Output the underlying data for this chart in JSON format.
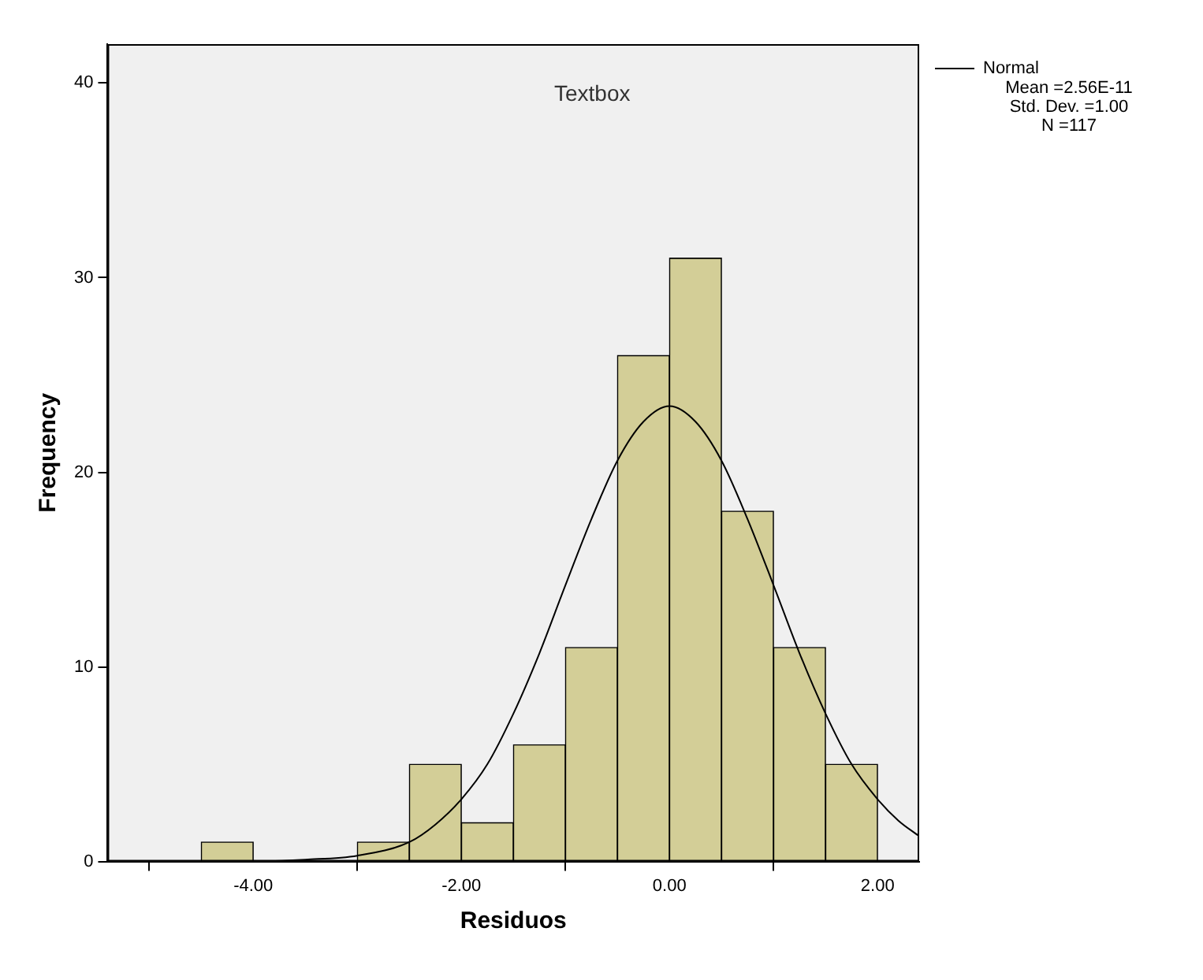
{
  "chart_data": {
    "type": "histogram",
    "xlabel": "Residuos",
    "ylabel": "Frequency",
    "bins": [
      -4.5,
      -4.0,
      -3.5,
      -3.0,
      -2.5,
      -2.0,
      -1.5,
      -1.0,
      -0.5,
      0.0,
      0.5,
      1.0,
      1.5,
      2.0
    ],
    "values": [
      1,
      0,
      0,
      1,
      5,
      2,
      6,
      11,
      26,
      31,
      18,
      11,
      5
    ],
    "color": "#d3ce97",
    "series": [
      {
        "name": "Normal",
        "type": "line",
        "color": "#000000",
        "x": [
          -5.4,
          -4,
          -3.5,
          -3,
          -2.5,
          -2.25,
          -2,
          -1.75,
          -1.5,
          -1.25,
          -1,
          -0.75,
          -0.5,
          -0.25,
          0,
          0.25,
          0.5,
          0.75,
          1,
          1.25,
          1.5,
          1.75,
          2,
          2.2,
          2.4
        ],
        "values": [
          0,
          0,
          0.1,
          0.3,
          1.0,
          1.9,
          3.2,
          5.0,
          7.6,
          10.7,
          14.2,
          17.6,
          20.6,
          22.6,
          23.4,
          22.6,
          20.6,
          17.6,
          14.2,
          10.7,
          7.6,
          5.0,
          3.2,
          2.1,
          1.3
        ]
      }
    ],
    "xlim": [
      -5.4,
      2.4
    ],
    "xticks": [
      {
        "value": -4,
        "label": "-4.00"
      },
      {
        "value": -2,
        "label": "-2.00"
      },
      {
        "value": 0,
        "label": "0.00"
      },
      {
        "value": 2,
        "label": "2.00"
      }
    ],
    "ylim": [
      0,
      42
    ],
    "yticks": [
      0,
      10,
      20,
      30,
      40
    ],
    "grid": false,
    "legend": "top right",
    "marker": "none",
    "line_style": "solid",
    "annotations": [
      "Textbox",
      "Mean =2.56E-11",
      "Std. Dev. =1.00",
      "N =117"
    ]
  }
}
